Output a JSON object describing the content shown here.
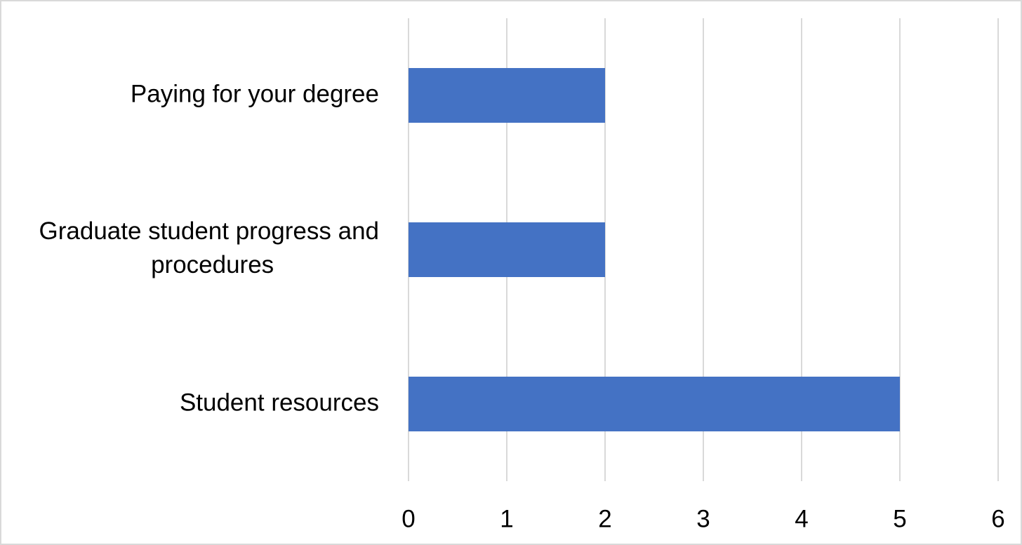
{
  "chart_data": {
    "type": "bar",
    "orientation": "horizontal",
    "categories": [
      "Paying for your degree",
      "Graduate student progress and procedures",
      "Student resources"
    ],
    "values": [
      2,
      2,
      5
    ],
    "color": "#4472c4",
    "xlim": [
      0,
      6
    ],
    "xticks": [
      0,
      1,
      2,
      3,
      4,
      5,
      6
    ],
    "grid": true
  }
}
